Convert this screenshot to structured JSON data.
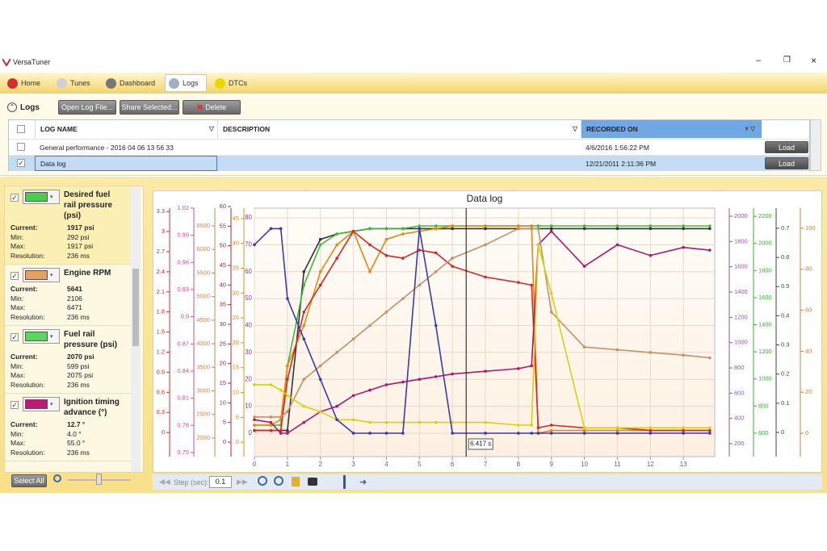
{
  "window": {
    "title": "VersaTuner"
  },
  "tabs": [
    "Home",
    "Tunes",
    "Dashboard",
    "Logs",
    "DTCs"
  ],
  "active_tab": 3,
  "logs": {
    "title": "Logs",
    "buttons": [
      "Open Log File...",
      "Share Selected...",
      "Delete"
    ],
    "columns": [
      "LOG NAME",
      "DESCRIPTION",
      "RECORDED ON"
    ],
    "rows": [
      {
        "name": "General performance - 2016 04 06 13 56 33",
        "recorded_on": "4/6/2016 1:56:22 PM",
        "action": "Load",
        "checked": false,
        "selected": false
      },
      {
        "name": "Data log",
        "recorded_on": "12/21/2011 2:11:36 PM",
        "action": "Load",
        "checked": true,
        "selected": true
      }
    ]
  },
  "channels": {
    "field_labels": [
      "Current:",
      "Min:",
      "Max:",
      "Resolution:"
    ],
    "items": [
      {
        "name": "Desired fuel rail pressure (psi)",
        "color": "#4ccc4c",
        "checked": true,
        "selected": true,
        "fields": [
          "1917 psi",
          "292 psi",
          "1917 psi",
          "236 ms"
        ]
      },
      {
        "name": "Engine RPM",
        "color": "#e8a060",
        "checked": true,
        "selected": false,
        "fields": [
          "5641",
          "2106",
          "6471",
          "236 ms"
        ]
      },
      {
        "name": "Fuel rail pressure (psi)",
        "color": "#5ad85a",
        "checked": true,
        "selected": false,
        "fields": [
          "2070 psi",
          "599 psi",
          "2075 psi",
          "236 ms"
        ]
      },
      {
        "name": "Ignition timing advance (°)",
        "color": "#c0187a",
        "checked": true,
        "selected": false,
        "fields": [
          "12.7 °",
          "4.0 °",
          "55.0 °",
          "236 ms"
        ]
      }
    ]
  },
  "select_all": "Select All",
  "chart_data": {
    "type": "line",
    "title": "Data log",
    "x": [
      0,
      0.5,
      0.8,
      1,
      1.5,
      2,
      2.5,
      3,
      3.5,
      4,
      4.5,
      5,
      5.5,
      6,
      7,
      8,
      8.4,
      8.6,
      9,
      10,
      11,
      12,
      13,
      13.8
    ],
    "xlim": [
      0,
      13.95
    ],
    "xticks": [
      0,
      1,
      2,
      3,
      4,
      5,
      6,
      7,
      8,
      9,
      10,
      11,
      12,
      13
    ],
    "ylim": [
      -8.7,
      83.6
    ],
    "yticks": [
      0,
      10,
      20,
      30,
      40,
      50,
      60,
      70,
      80
    ],
    "y_color": "#7a3f9a",
    "grid": true,
    "cursor": {
      "value": 6.417,
      "label": "6.417 s"
    },
    "series": [
      {
        "color": "#333333",
        "values": [
          1,
          1,
          1,
          1,
          60,
          72,
          74,
          75,
          76,
          76,
          76,
          76,
          76,
          76,
          76,
          76,
          76,
          76,
          76,
          76,
          76,
          76,
          76,
          76
        ]
      },
      {
        "color": "#3dbb3d",
        "values": [
          3,
          3,
          3,
          25,
          55,
          70,
          74,
          75,
          76,
          76,
          76,
          77,
          77,
          77,
          77,
          77,
          77,
          77,
          77,
          77,
          77,
          77,
          77,
          77
        ]
      },
      {
        "color": "#e8860e",
        "values": [
          3,
          3,
          5,
          25,
          40,
          60,
          70,
          75,
          60,
          72,
          74,
          75,
          76,
          77,
          77,
          77,
          77,
          0,
          1,
          1,
          1,
          1,
          1,
          1
        ]
      },
      {
        "color": "#d62828",
        "values": [
          1,
          1,
          1,
          20,
          45,
          55,
          65,
          75,
          70,
          66,
          65,
          68,
          67,
          62,
          58,
          56,
          55,
          2,
          3,
          2,
          2,
          1,
          1,
          1
        ]
      },
      {
        "color": "#b0186e",
        "values": [
          5,
          4,
          0,
          0,
          4,
          8,
          10,
          14,
          16,
          18,
          19,
          20,
          21,
          22,
          23,
          24,
          25,
          70,
          75,
          62,
          70,
          66,
          69,
          68
        ]
      },
      {
        "color": "#c49066",
        "values": [
          6,
          6,
          6,
          8,
          20,
          25,
          30,
          35,
          40,
          45,
          50,
          55,
          60,
          65,
          70,
          76,
          76,
          76,
          45,
          32,
          31,
          30,
          29,
          28
        ]
      },
      {
        "color": "#d8d010",
        "values": [
          18,
          18,
          16,
          14,
          10,
          8,
          5,
          5,
          4,
          4,
          4,
          4,
          4,
          4,
          4,
          3,
          3,
          70,
          52,
          2,
          2,
          2,
          2,
          2
        ]
      },
      {
        "color": "#3a3aa8",
        "values": [
          70,
          76,
          76,
          50,
          35,
          20,
          5,
          0,
          0,
          0,
          0,
          76,
          40,
          0,
          0,
          0,
          0,
          0,
          0,
          0,
          0,
          0,
          0,
          0
        ]
      }
    ],
    "extra_axes": [
      {
        "side": "left",
        "color": "#cc2a2a",
        "ylim": [
          -0.36,
          3.35
        ],
        "yticks": [
          0,
          0.3,
          0.6,
          0.9,
          1.2,
          1.5,
          1.8,
          2.1,
          2.4,
          2.7,
          3,
          3.3
        ]
      },
      {
        "side": "left",
        "color": "#d0508a",
        "ylim": [
          0.7455,
          1.02
        ],
        "yticks": [
          0.75,
          0.78,
          0.81,
          0.84,
          0.87,
          0.9,
          0.93,
          0.96,
          0.99,
          1.02
        ]
      },
      {
        "side": "left",
        "color": "#c08a5a",
        "ylim": [
          1606,
          6876
        ],
        "yticks": [
          2000,
          2500,
          3000,
          3500,
          4000,
          4500,
          5000,
          5500,
          6000,
          6500
        ]
      },
      {
        "side": "left",
        "color": "#a02a40",
        "ylim": [
          -3.7,
          59.6
        ],
        "yticks": [
          0,
          5,
          10,
          15,
          20,
          25,
          30,
          35,
          40,
          45,
          50,
          55,
          60
        ]
      },
      {
        "side": "left",
        "color": "#e0901a",
        "ylim": [
          -2.9,
          47.1
        ],
        "yticks": [
          0,
          5,
          10,
          15,
          20,
          25,
          30,
          35,
          40,
          45
        ]
      },
      {
        "side": "right",
        "color": "#8a5aa0",
        "ylim": [
          98,
          2064
        ],
        "yticks": [
          200,
          400,
          600,
          800,
          1000,
          1200,
          1400,
          1600,
          1800,
          2000
        ]
      },
      {
        "side": "right",
        "color": "#3daa3d",
        "ylim": [
          427,
          2260
        ],
        "yticks": [
          600,
          800,
          1000,
          1200,
          1400,
          1600,
          1800,
          2000,
          2200
        ]
      },
      {
        "side": "right",
        "color": "#444444",
        "ylim": [
          -0.083,
          0.769
        ],
        "yticks": [
          0,
          0.1,
          0.2,
          0.3,
          0.4,
          0.5,
          0.6,
          0.7
        ]
      },
      {
        "side": "right",
        "color": "#c8843a",
        "ylim": [
          -11.4,
          109.8
        ],
        "yticks": [
          0,
          20,
          40,
          60,
          80,
          100
        ]
      }
    ]
  },
  "toolbar": {
    "step_label": "Step (sec):",
    "step_value": 0.1
  }
}
